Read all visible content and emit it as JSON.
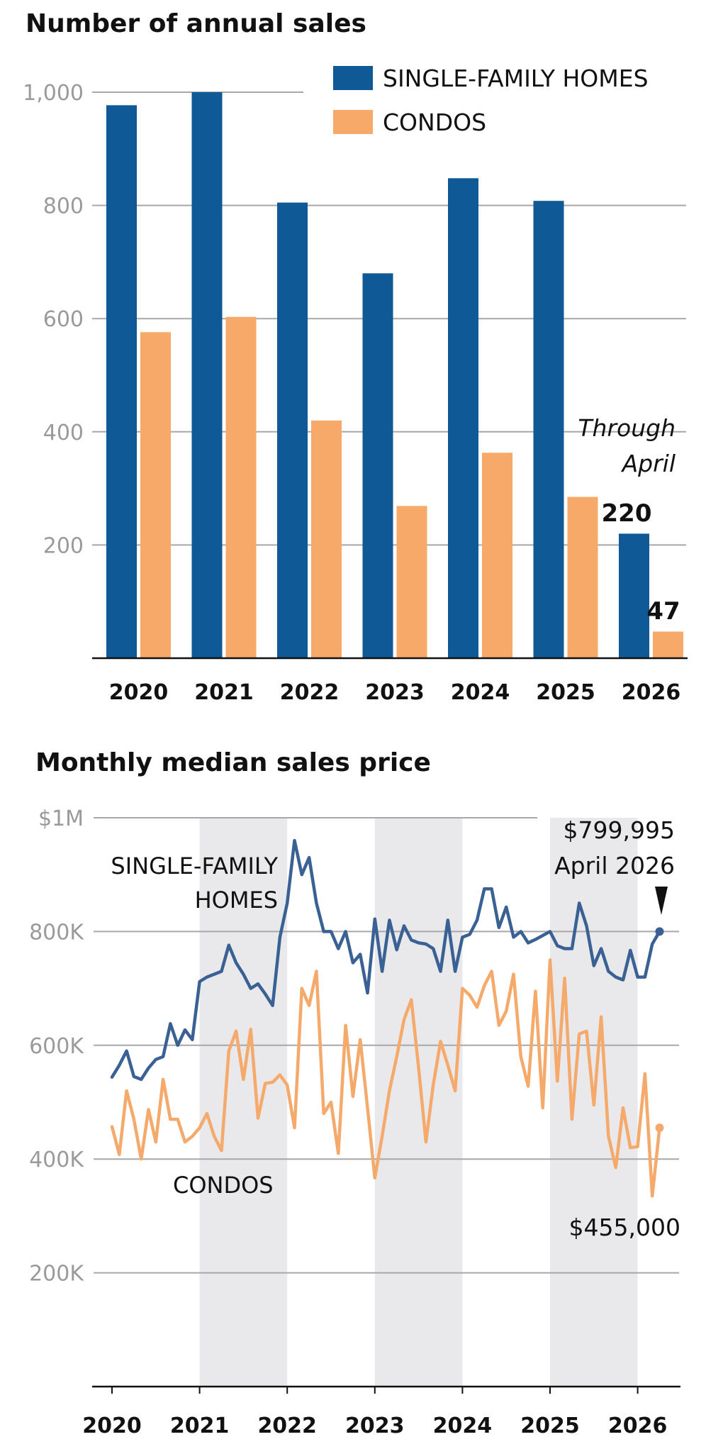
{
  "chart_data": [
    {
      "type": "bar",
      "title": "Number of annual sales",
      "categories": [
        "2020",
        "2021",
        "2022",
        "2023",
        "2024",
        "2025",
        "2026"
      ],
      "series": [
        {
          "name": "SINGLE-FAMILY HOMES",
          "color": "#0f5a96",
          "values": [
            977,
            1000,
            805,
            680,
            848,
            808,
            220
          ]
        },
        {
          "name": "CONDOS",
          "color": "#f7a96a",
          "values": [
            576,
            603,
            420,
            269,
            363,
            285,
            47
          ]
        }
      ],
      "y_ticks": [
        "1,000",
        "800",
        "600",
        "400",
        "200"
      ],
      "y_tick_values": [
        1000,
        800,
        600,
        400,
        200
      ],
      "ylim": [
        0,
        1000
      ],
      "grid": true,
      "legend": "top-right",
      "annotation": {
        "line1": "Through",
        "line2": "April"
      },
      "data_labels": {
        "single_2026": "220",
        "condo_2026": "47"
      }
    },
    {
      "type": "line",
      "title": "Monthly median sales price",
      "x_ticks": [
        "2020",
        "2021",
        "2022",
        "2023",
        "2024",
        "2025",
        "2026"
      ],
      "x_tick_values": [
        2020,
        2021,
        2022,
        2023,
        2024,
        2025,
        2026
      ],
      "y_ticks": [
        "$1M",
        "800K",
        "600K",
        "400K",
        "200K"
      ],
      "y_tick_values": [
        1000000,
        800000,
        600000,
        400000,
        200000
      ],
      "ylim": [
        0,
        1000000
      ],
      "shaded_years": [
        2021,
        2023,
        2025
      ],
      "grid": true,
      "series": [
        {
          "name": "SINGLE-FAMILY HOMES",
          "label_lines": [
            "SINGLE-FAMILY",
            "HOMES"
          ],
          "color": "#3a6194",
          "values": [
            544000,
            565000,
            590000,
            545000,
            540000,
            560000,
            575000,
            580000,
            638000,
            600000,
            627000,
            610000,
            712000,
            720000,
            725000,
            730000,
            776000,
            745000,
            725000,
            700000,
            708000,
            690000,
            670000,
            790000,
            850000,
            960000,
            900000,
            930000,
            850000,
            800000,
            800000,
            770000,
            800000,
            745000,
            760000,
            692000,
            822000,
            730000,
            820000,
            768000,
            810000,
            785000,
            780000,
            778000,
            770000,
            730000,
            820000,
            730000,
            790000,
            795000,
            820000,
            875000,
            875000,
            807000,
            843000,
            790000,
            800000,
            780000,
            786000,
            793000,
            800000,
            775000,
            770000,
            770000,
            850000,
            810000,
            740000,
            770000,
            730000,
            720000,
            715000,
            767000,
            720000,
            720000,
            778000,
            799995
          ]
        },
        {
          "name": "CONDOS",
          "label_lines": [
            "CONDOS"
          ],
          "color": "#f5a96b",
          "values": [
            457000,
            408000,
            520000,
            470000,
            400000,
            487000,
            430000,
            540000,
            470000,
            470000,
            430000,
            440000,
            455000,
            480000,
            440000,
            415000,
            590000,
            625000,
            540000,
            628000,
            472000,
            533000,
            535000,
            548000,
            530000,
            455000,
            700000,
            670000,
            730000,
            480000,
            500000,
            410000,
            635000,
            510000,
            610000,
            490000,
            367000,
            440000,
            520000,
            580000,
            645000,
            680000,
            560000,
            430000,
            530000,
            607000,
            565000,
            520000,
            700000,
            688000,
            667000,
            705000,
            730000,
            635000,
            660000,
            725000,
            580000,
            528000,
            695000,
            490000,
            750000,
            537000,
            718000,
            470000,
            620000,
            625000,
            495000,
            650000,
            440000,
            385000,
            490000,
            420000,
            422000,
            550000,
            335000,
            455000
          ]
        }
      ],
      "series_start": {
        "year": 2020,
        "month": 1
      },
      "annotations": {
        "single_price": "$799,995",
        "single_date": "April 2026",
        "condo_price": "$455,000"
      }
    }
  ]
}
